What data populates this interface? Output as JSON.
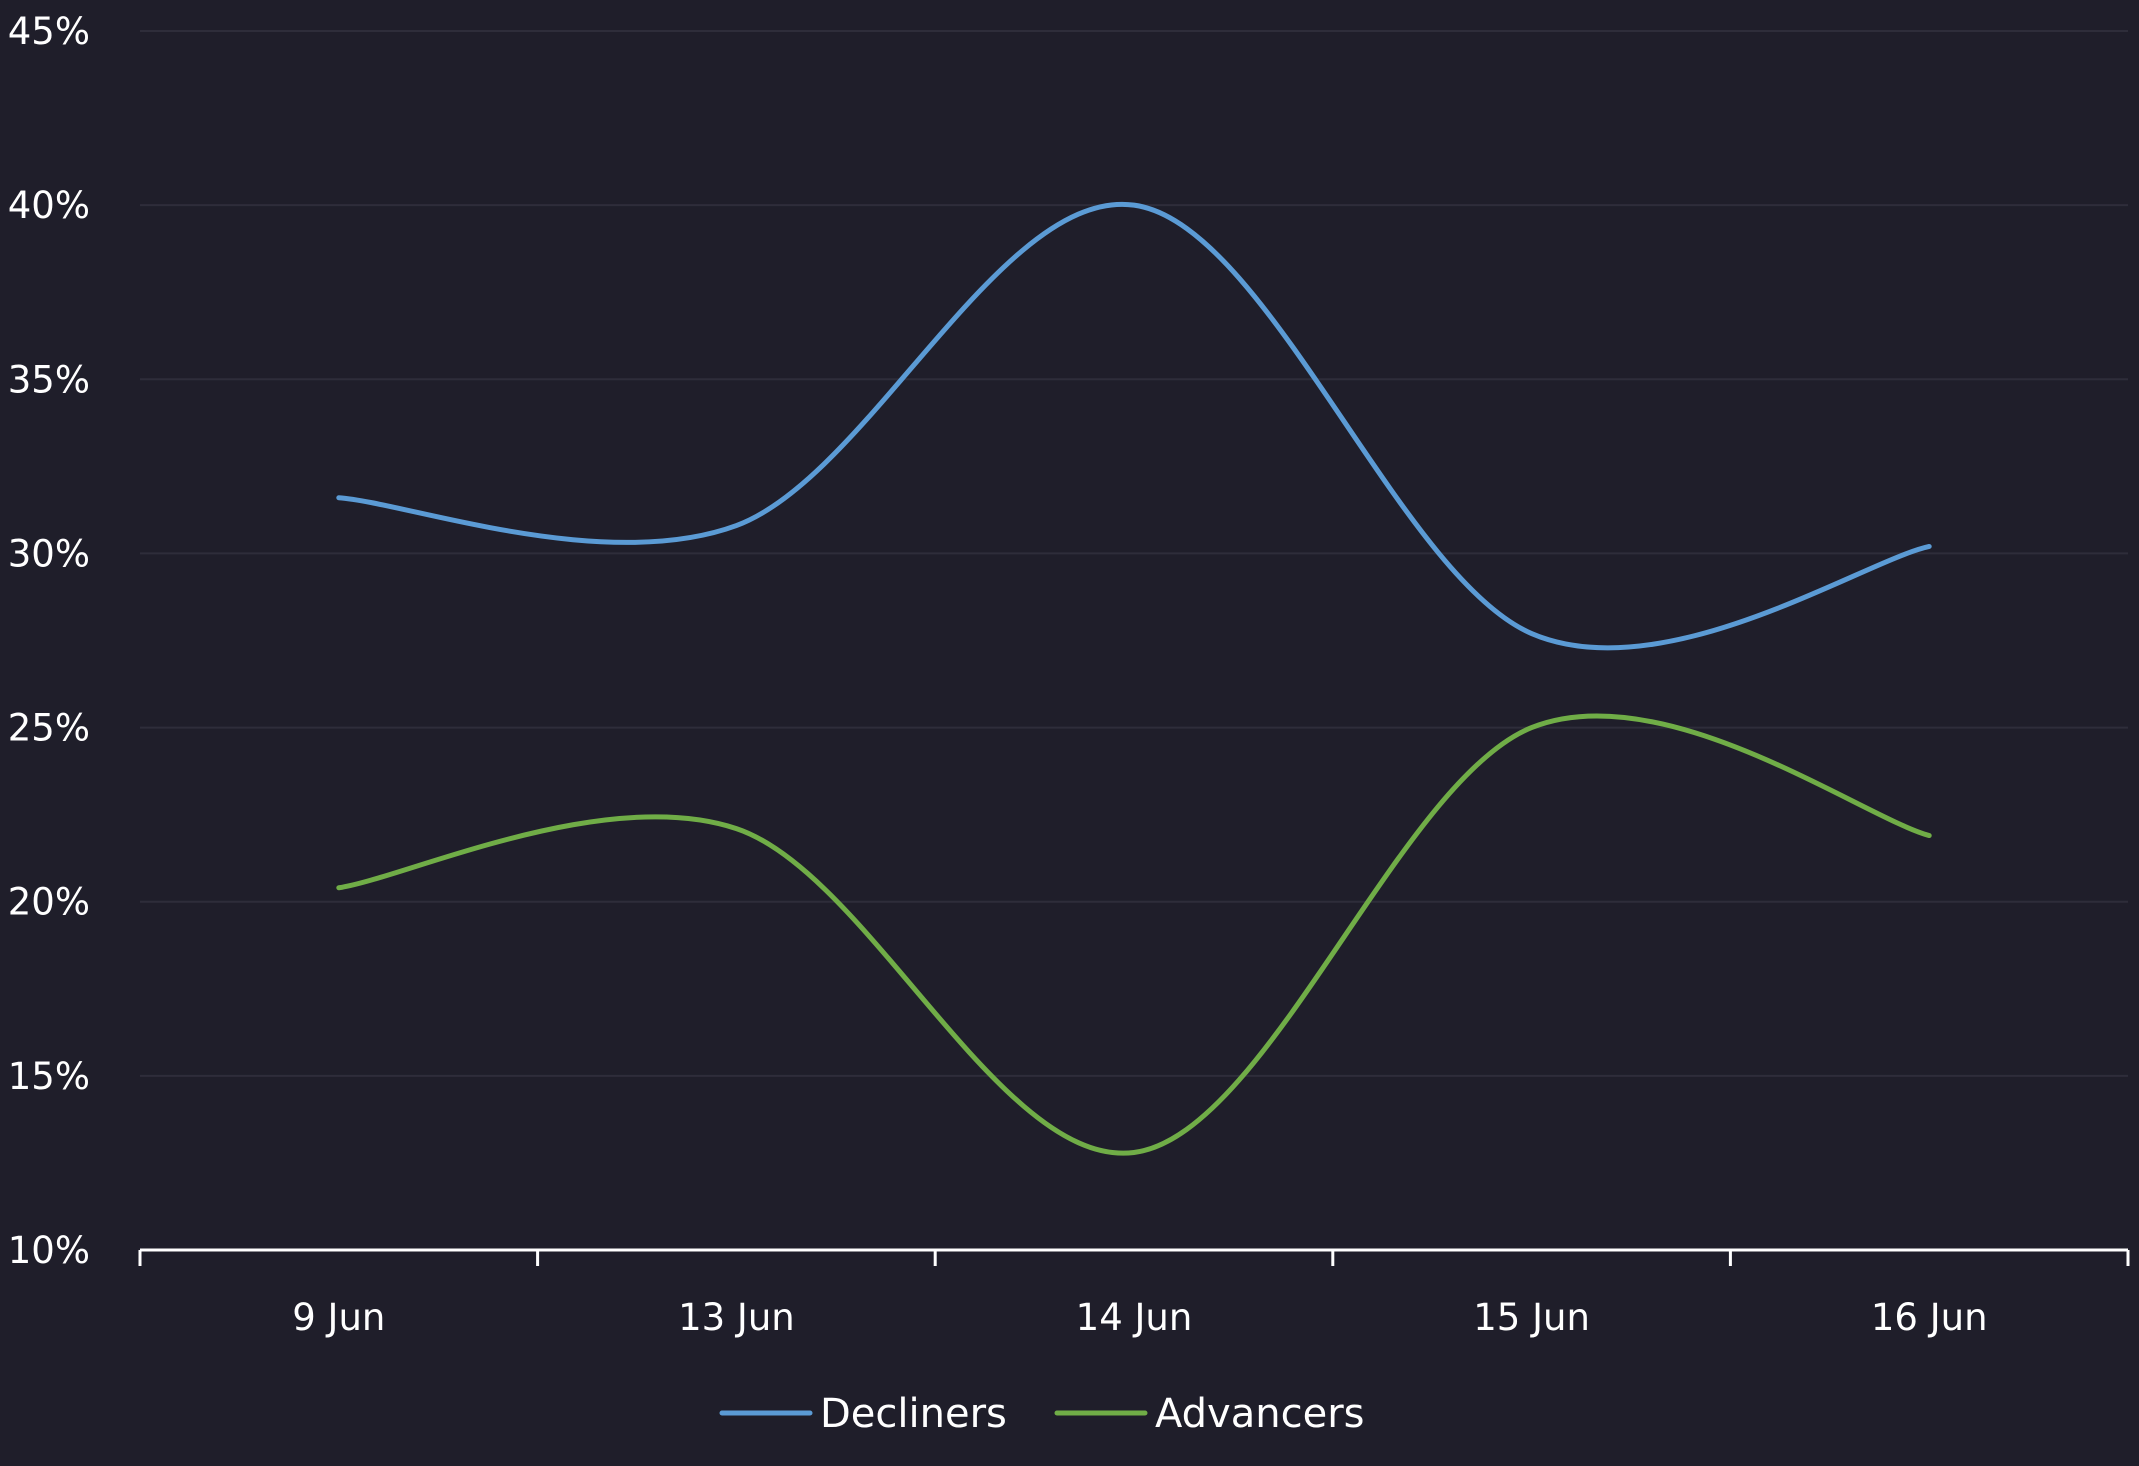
{
  "chart_data": {
    "type": "line",
    "title": "",
    "xlabel": "",
    "ylabel": "",
    "categories": [
      "9 Jun",
      "13 Jun",
      "14 Jun",
      "15 Jun",
      "16 Jun"
    ],
    "ylim": [
      10,
      45
    ],
    "yticks": [
      10,
      15,
      20,
      25,
      30,
      35,
      40,
      45
    ],
    "ytick_labels": [
      "10%",
      "15%",
      "20%",
      "25%",
      "30%",
      "35%",
      "40%",
      "45%"
    ],
    "grid": true,
    "legend_position": "bottom-center",
    "series": [
      {
        "name": "Decliners",
        "color": "#5b9bd5",
        "values": [
          31.6,
          30.8,
          40.0,
          27.7,
          30.2
        ]
      },
      {
        "name": "Advancers",
        "color": "#70ad47",
        "values": [
          20.4,
          22.1,
          12.8,
          25.0,
          21.9
        ]
      }
    ],
    "colors": {
      "background": "#1f1e2a",
      "grid": "#2e2d3a",
      "axis": "#ffffff",
      "text": "#ffffff"
    }
  }
}
